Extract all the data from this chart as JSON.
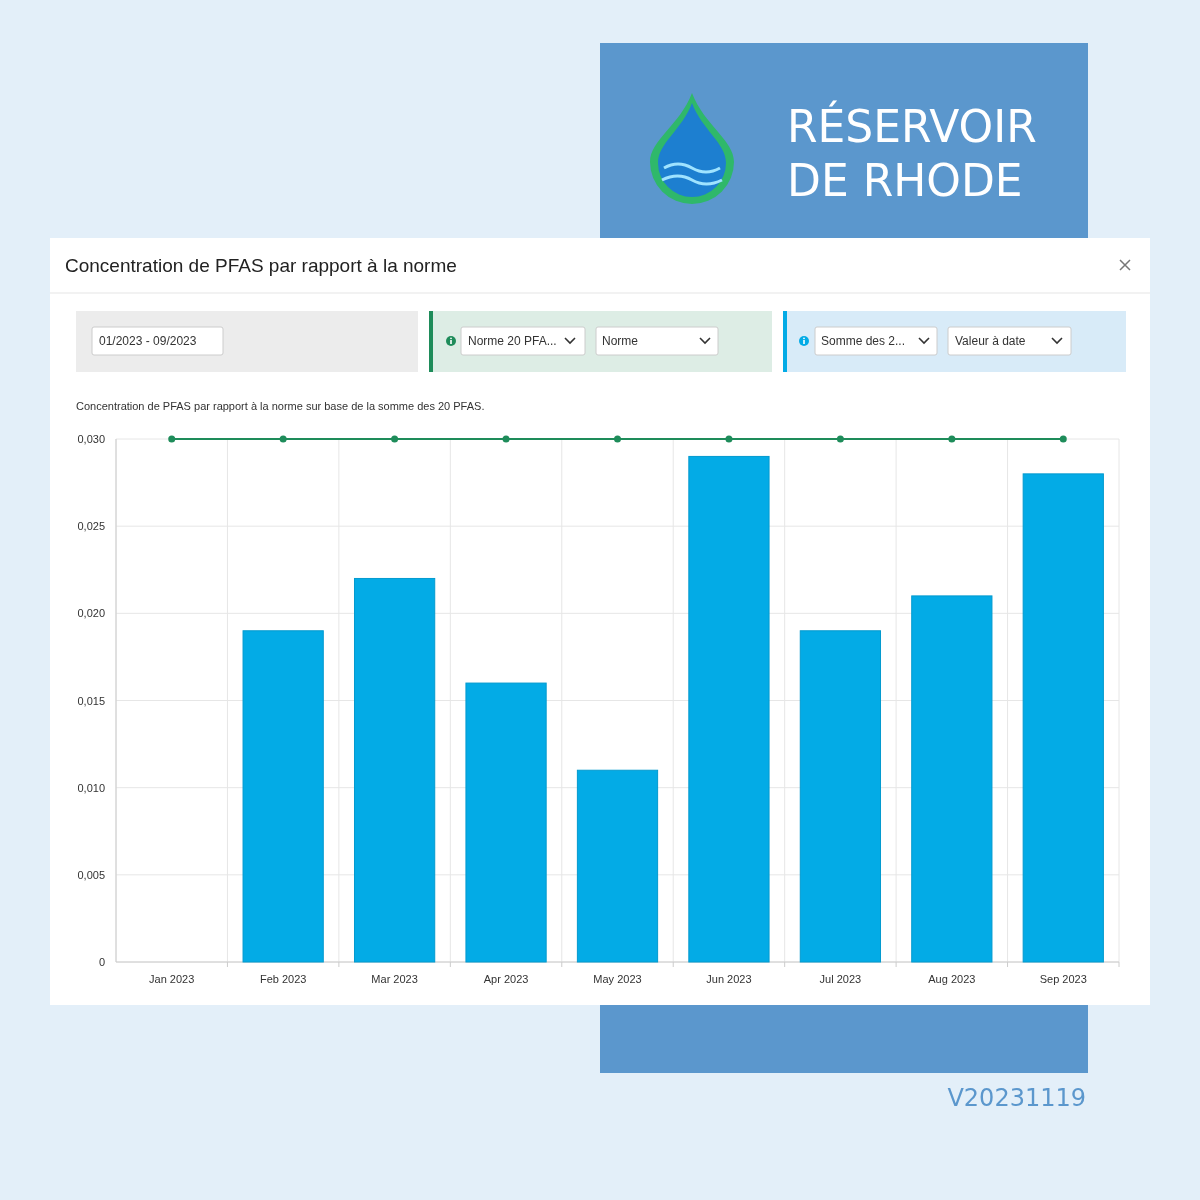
{
  "chart_data": {
    "type": "bar",
    "title": "Concentration de PFAS par rapport à la norme",
    "subtitle": "Concentration de PFAS par rapport à la norme sur base de la somme des 20 PFAS.",
    "categories": [
      "Jan 2023",
      "Feb 2023",
      "Mar 2023",
      "Apr 2023",
      "May 2023",
      "Jun 2023",
      "Jul 2023",
      "Aug 2023",
      "Sep 2023"
    ],
    "series": [
      {
        "color": "#03abe6",
        "values": [
          null,
          0.019,
          0.022,
          0.016,
          0.011,
          0.029,
          0.019,
          0.021,
          0.028
        ]
      },
      {
        "type": "line",
        "color": "#1e8c5a",
        "values": [
          0.03,
          0.03,
          0.03,
          0.03,
          0.03,
          0.03,
          0.03,
          0.03,
          0.03
        ]
      }
    ],
    "ylim": [
      0,
      0.03
    ],
    "yticks": [
      0,
      {
        "value": 0.005,
        "label": "0,005"
      },
      {
        "value": 0.01,
        "label": "0,010"
      },
      {
        "value": 0.015,
        "label": "0,015"
      },
      {
        "value": 0.02,
        "label": "0,020"
      },
      {
        "value": 0.025,
        "label": "0,025"
      },
      {
        "value": 0.03,
        "label": "0,030"
      }
    ],
    "grid": true,
    "marker": "circle",
    "line_style": "solid",
    "annotations": [
      "RÉSERVOIR DE RHODE",
      "01/2023 - 09/2023",
      "Norme 20 PFA...",
      "Norme",
      "Somme des 2...",
      "Valeur à date",
      "V20231119"
    ]
  }
}
